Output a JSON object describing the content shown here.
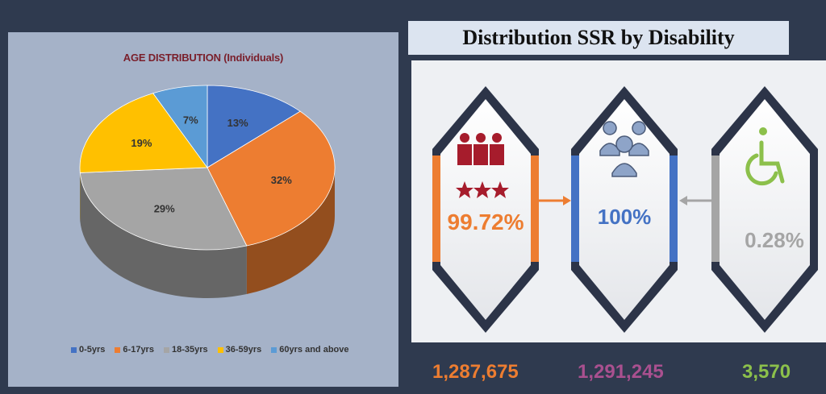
{
  "chart_data": {
    "type": "pie",
    "title": "AGE DISTRIBUTION (Individuals)",
    "categories": [
      "0-5yrs",
      "6-17yrs",
      "18-35yrs",
      "36-59yrs",
      "60yrs and above"
    ],
    "values": [
      13,
      32,
      29,
      19,
      7
    ],
    "labels": [
      "13%",
      "32%",
      "29%",
      "19%",
      "7%"
    ],
    "colors": [
      "#4472c4",
      "#ed7d31",
      "#a5a5a5",
      "#ffc000",
      "#5b9bd5"
    ],
    "legend_position": "bottom"
  },
  "disability": {
    "title": "Distribution SSR by Disability",
    "cards": [
      {
        "value": "99.72%",
        "count": "1,287,675",
        "icon": "people-stars-icon",
        "color": "#ed7d31",
        "count_color": "#ed7d31"
      },
      {
        "value": "100%",
        "count": "1,291,245",
        "icon": "group-icon",
        "color": "#4472c4",
        "count_color": "#a9508f"
      },
      {
        "value": "0.28%",
        "count": "3,570",
        "icon": "wheelchair-icon",
        "color": "#a5a5a5",
        "count_color": "#8cc04b"
      }
    ]
  }
}
